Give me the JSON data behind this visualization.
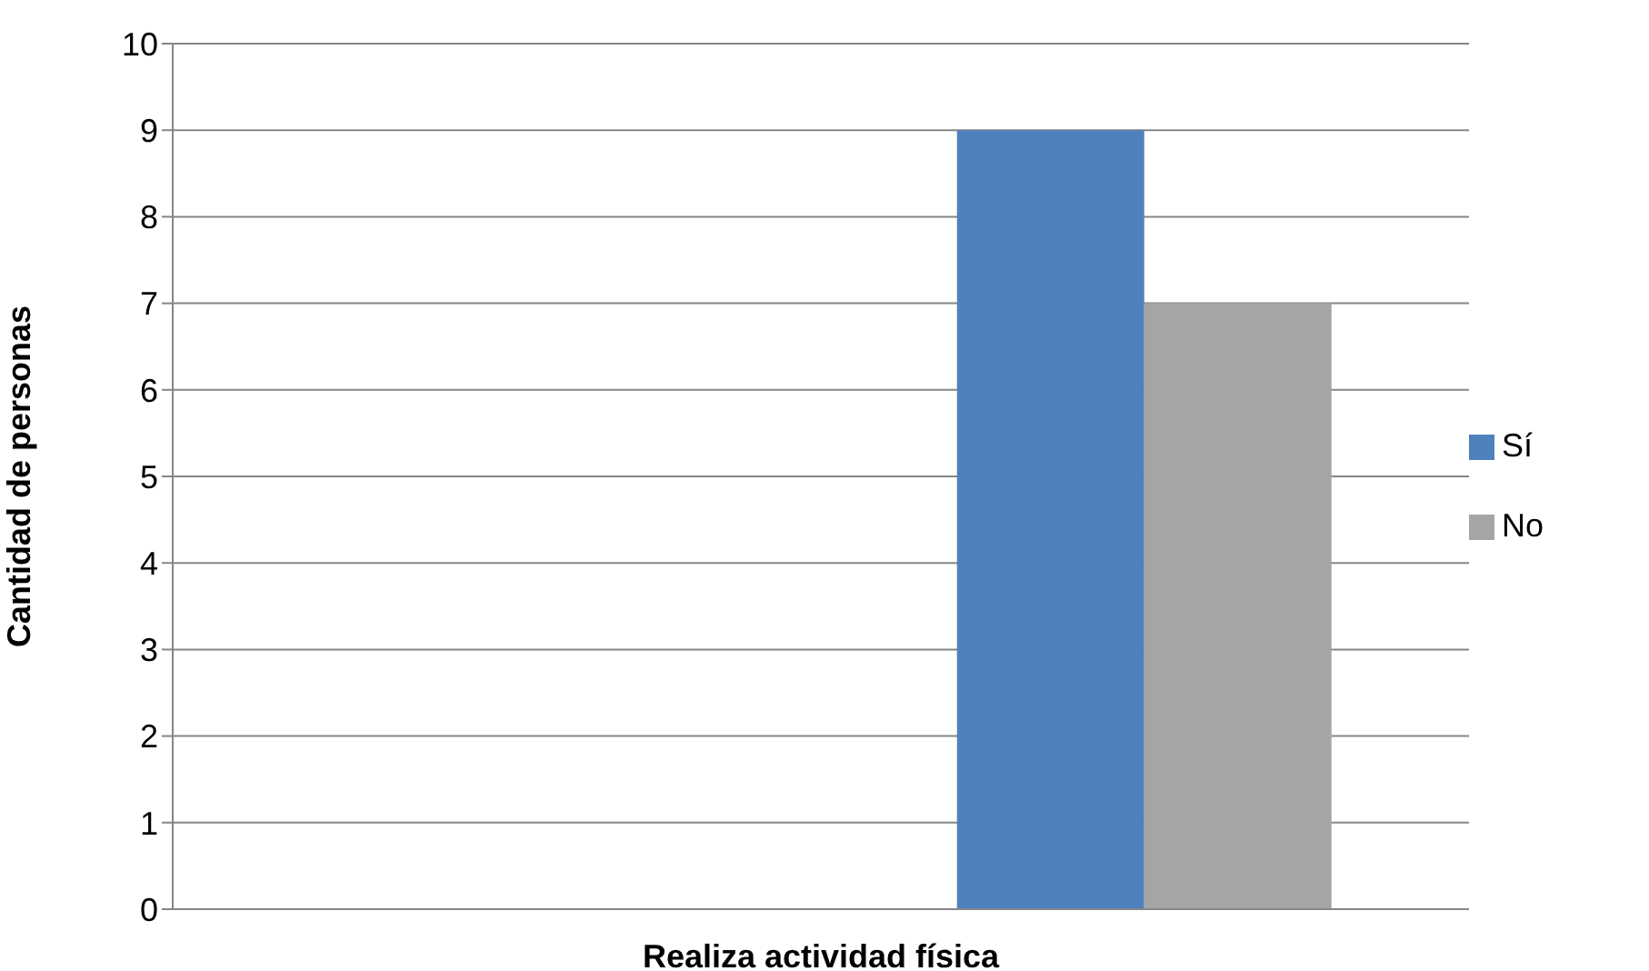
{
  "chart_data": {
    "type": "bar",
    "xlabel": "Realiza actividad física",
    "ylabel": "Cantidad de personas",
    "categories": [
      null,
      null
    ],
    "series": [
      {
        "name": "Sí",
        "color": "#4f81bd",
        "values": [
          null,
          9
        ]
      },
      {
        "name": "No",
        "color": "#a5a5a5",
        "values": [
          null,
          7
        ]
      }
    ],
    "ylim": [
      0,
      10
    ],
    "yticks": [
      0,
      1,
      2,
      3,
      4,
      5,
      6,
      7,
      8,
      9,
      10
    ],
    "grid": "y",
    "legend": "right",
    "tick_labels": "y"
  }
}
